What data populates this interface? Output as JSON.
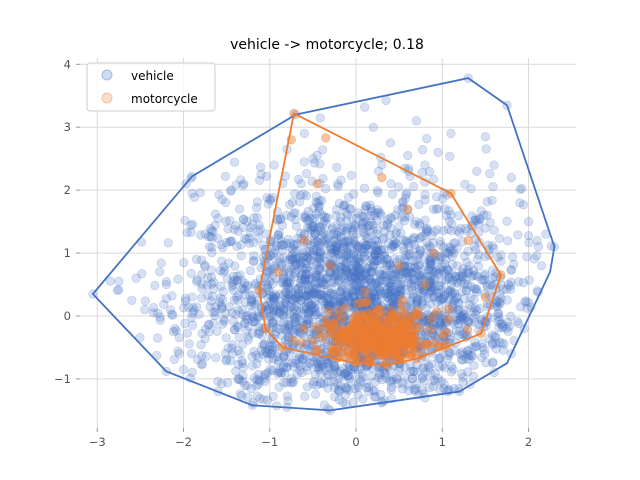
{
  "chart_data": {
    "type": "scatter",
    "title": "vehicle -> motorcycle; 0.18",
    "xlabel": "",
    "ylabel": "",
    "xlim": [
      -3.2,
      2.55
    ],
    "ylim": [
      -1.78,
      4.1
    ],
    "xticks": [
      -3,
      -2,
      -1,
      0,
      1,
      2
    ],
    "yticks": [
      -1,
      0,
      1,
      2,
      3,
      4
    ],
    "grid": true,
    "legend_position": "top-left",
    "series": [
      {
        "name": "vehicle",
        "color": "#4472c4",
        "hull": [
          [
            -3.05,
            0.35
          ],
          [
            -1.9,
            2.22
          ],
          [
            -0.7,
            3.2
          ],
          [
            1.3,
            3.78
          ],
          [
            1.75,
            3.35
          ],
          [
            2.3,
            1.1
          ],
          [
            2.25,
            0.7
          ],
          [
            1.75,
            -0.75
          ],
          [
            1.2,
            -1.2
          ],
          [
            0.3,
            -1.38
          ],
          [
            -0.3,
            -1.5
          ],
          [
            -1.2,
            -1.42
          ],
          [
            -2.2,
            -0.88
          ]
        ],
        "core_center": [
          0.0,
          0.2
        ],
        "core_spread": [
          0.95,
          0.9
        ],
        "outliers": [
          [
            -3.05,
            0.35
          ],
          [
            -2.75,
            0.55
          ],
          [
            -2.6,
            0.25
          ],
          [
            -2.55,
            0.6
          ],
          [
            -2.45,
            0.1
          ],
          [
            -2.35,
            0.05
          ],
          [
            -2.2,
            0.5
          ],
          [
            -2.1,
            -0.2
          ],
          [
            -2.3,
            -0.35
          ],
          [
            -1.9,
            1.95
          ],
          [
            -1.9,
            2.22
          ],
          [
            -1.85,
            0.9
          ],
          [
            -1.7,
            1.1
          ],
          [
            -1.75,
            1.3
          ],
          [
            -1.6,
            1.55
          ],
          [
            -1.55,
            1.85
          ],
          [
            -1.45,
            2.0
          ],
          [
            -1.35,
            1.7
          ],
          [
            -1.3,
            2.1
          ],
          [
            -1.1,
            2.25
          ],
          [
            -0.95,
            2.4
          ],
          [
            -0.8,
            2.65
          ],
          [
            -0.7,
            3.2
          ],
          [
            -0.6,
            2.9
          ],
          [
            -0.5,
            2.5
          ],
          [
            0.1,
            3.32
          ],
          [
            0.2,
            3.0
          ],
          [
            0.4,
            2.75
          ],
          [
            0.6,
            2.55
          ],
          [
            0.8,
            2.4
          ],
          [
            0.95,
            2.6
          ],
          [
            1.1,
            2.9
          ],
          [
            1.3,
            3.78
          ],
          [
            1.5,
            2.85
          ],
          [
            1.6,
            2.4
          ],
          [
            1.75,
            3.35
          ],
          [
            1.8,
            2.2
          ],
          [
            1.9,
            1.8
          ],
          [
            2.0,
            1.5
          ],
          [
            2.1,
            1.2
          ],
          [
            2.2,
            1.3
          ],
          [
            2.3,
            1.1
          ],
          [
            2.15,
            0.8
          ],
          [
            2.1,
            0.4
          ],
          [
            1.95,
            -0.2
          ],
          [
            1.8,
            -0.6
          ],
          [
            1.6,
            -0.9
          ],
          [
            1.2,
            -1.2
          ],
          [
            0.8,
            -1.3
          ],
          [
            0.3,
            -1.38
          ],
          [
            -0.3,
            -1.5
          ],
          [
            -0.8,
            -1.45
          ],
          [
            -1.2,
            -1.42
          ],
          [
            -1.6,
            -1.2
          ],
          [
            -2.0,
            -0.85
          ],
          [
            -2.2,
            -0.88
          ],
          [
            -2.05,
            -0.6
          ],
          [
            1.4,
            2.3
          ],
          [
            -1.2,
            1.45
          ],
          [
            0.7,
            3.1
          ]
        ]
      },
      {
        "name": "motorcycle",
        "color": "#ed7d31",
        "hull": [
          [
            -0.72,
            3.22
          ],
          [
            1.1,
            1.95
          ],
          [
            1.68,
            0.65
          ],
          [
            1.45,
            -0.28
          ],
          [
            0.7,
            -0.68
          ],
          [
            0.35,
            -0.78
          ],
          [
            0.0,
            -0.75
          ],
          [
            -0.85,
            -0.5
          ],
          [
            -1.05,
            -0.2
          ],
          [
            -1.12,
            0.4
          ]
        ],
        "core_center": [
          0.25,
          -0.35
        ],
        "core_spread": [
          0.35,
          0.22
        ],
        "outliers": [
          [
            -0.72,
            3.22
          ],
          [
            -0.35,
            2.83
          ],
          [
            -0.75,
            2.8
          ],
          [
            -0.45,
            2.1
          ],
          [
            0.3,
            2.2
          ],
          [
            0.6,
            1.7
          ],
          [
            1.1,
            1.95
          ],
          [
            1.3,
            1.2
          ],
          [
            1.68,
            0.65
          ],
          [
            1.5,
            0.3
          ],
          [
            1.45,
            -0.28
          ],
          [
            1.0,
            -0.3
          ],
          [
            0.7,
            -0.68
          ],
          [
            0.35,
            -0.78
          ],
          [
            0.0,
            -0.75
          ],
          [
            -0.5,
            -0.4
          ],
          [
            -0.85,
            -0.5
          ],
          [
            -1.05,
            -0.2
          ],
          [
            -1.12,
            0.4
          ],
          [
            -0.9,
            0.7
          ],
          [
            -0.6,
            1.2
          ],
          [
            -0.3,
            0.8
          ],
          [
            0.5,
            0.8
          ],
          [
            0.8,
            0.5
          ],
          [
            0.9,
            1.0
          ]
        ]
      }
    ]
  }
}
